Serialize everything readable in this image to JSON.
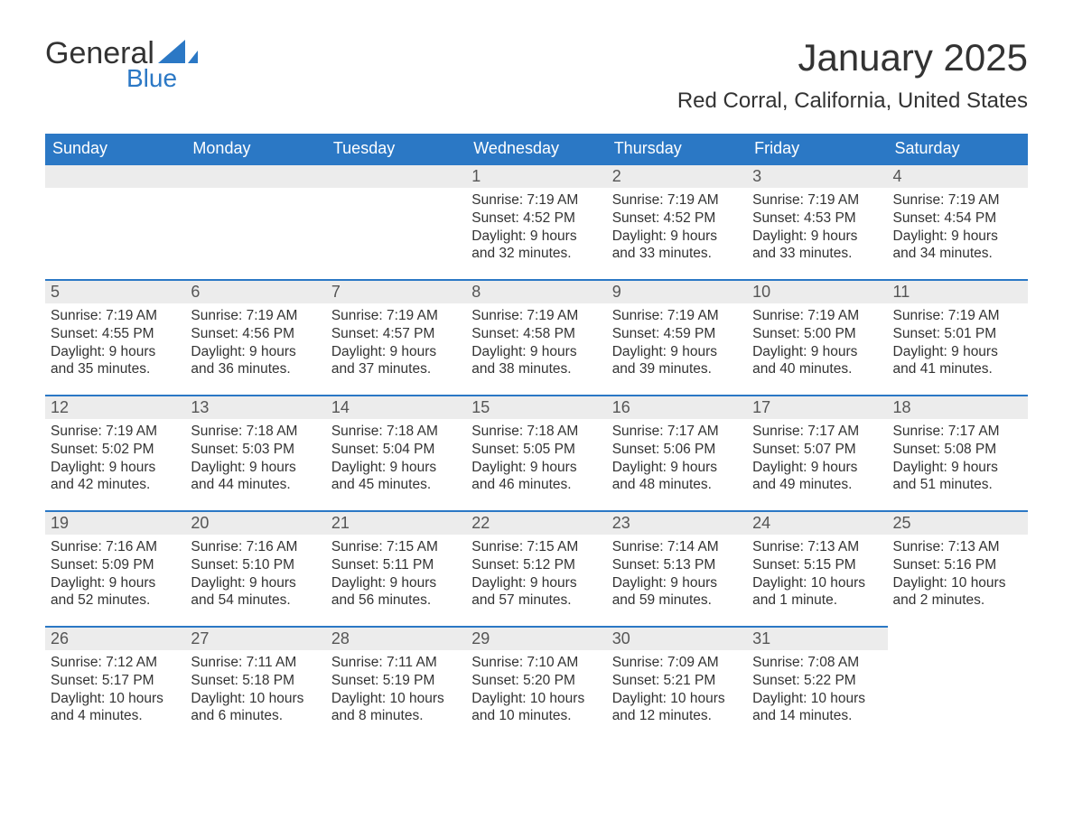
{
  "brand": {
    "part1": "General",
    "part2": "Blue",
    "color_text": "#333333",
    "color_accent": "#2b78c5"
  },
  "title": "January 2025",
  "location": "Red Corral, California, United States",
  "colors": {
    "header_bg": "#2b78c5",
    "header_text": "#ffffff",
    "daynum_bg": "#ececec",
    "row_border": "#2b78c5",
    "body_text": "#333333",
    "page_bg": "#ffffff"
  },
  "day_headers": [
    "Sunday",
    "Monday",
    "Tuesday",
    "Wednesday",
    "Thursday",
    "Friday",
    "Saturday"
  ],
  "weeks": [
    [
      null,
      null,
      null,
      {
        "n": "1",
        "sunrise": "Sunrise: 7:19 AM",
        "sunset": "Sunset: 4:52 PM",
        "daylight": "Daylight: 9 hours and 32 minutes."
      },
      {
        "n": "2",
        "sunrise": "Sunrise: 7:19 AM",
        "sunset": "Sunset: 4:52 PM",
        "daylight": "Daylight: 9 hours and 33 minutes."
      },
      {
        "n": "3",
        "sunrise": "Sunrise: 7:19 AM",
        "sunset": "Sunset: 4:53 PM",
        "daylight": "Daylight: 9 hours and 33 minutes."
      },
      {
        "n": "4",
        "sunrise": "Sunrise: 7:19 AM",
        "sunset": "Sunset: 4:54 PM",
        "daylight": "Daylight: 9 hours and 34 minutes."
      }
    ],
    [
      {
        "n": "5",
        "sunrise": "Sunrise: 7:19 AM",
        "sunset": "Sunset: 4:55 PM",
        "daylight": "Daylight: 9 hours and 35 minutes."
      },
      {
        "n": "6",
        "sunrise": "Sunrise: 7:19 AM",
        "sunset": "Sunset: 4:56 PM",
        "daylight": "Daylight: 9 hours and 36 minutes."
      },
      {
        "n": "7",
        "sunrise": "Sunrise: 7:19 AM",
        "sunset": "Sunset: 4:57 PM",
        "daylight": "Daylight: 9 hours and 37 minutes."
      },
      {
        "n": "8",
        "sunrise": "Sunrise: 7:19 AM",
        "sunset": "Sunset: 4:58 PM",
        "daylight": "Daylight: 9 hours and 38 minutes."
      },
      {
        "n": "9",
        "sunrise": "Sunrise: 7:19 AM",
        "sunset": "Sunset: 4:59 PM",
        "daylight": "Daylight: 9 hours and 39 minutes."
      },
      {
        "n": "10",
        "sunrise": "Sunrise: 7:19 AM",
        "sunset": "Sunset: 5:00 PM",
        "daylight": "Daylight: 9 hours and 40 minutes."
      },
      {
        "n": "11",
        "sunrise": "Sunrise: 7:19 AM",
        "sunset": "Sunset: 5:01 PM",
        "daylight": "Daylight: 9 hours and 41 minutes."
      }
    ],
    [
      {
        "n": "12",
        "sunrise": "Sunrise: 7:19 AM",
        "sunset": "Sunset: 5:02 PM",
        "daylight": "Daylight: 9 hours and 42 minutes."
      },
      {
        "n": "13",
        "sunrise": "Sunrise: 7:18 AM",
        "sunset": "Sunset: 5:03 PM",
        "daylight": "Daylight: 9 hours and 44 minutes."
      },
      {
        "n": "14",
        "sunrise": "Sunrise: 7:18 AM",
        "sunset": "Sunset: 5:04 PM",
        "daylight": "Daylight: 9 hours and 45 minutes."
      },
      {
        "n": "15",
        "sunrise": "Sunrise: 7:18 AM",
        "sunset": "Sunset: 5:05 PM",
        "daylight": "Daylight: 9 hours and 46 minutes."
      },
      {
        "n": "16",
        "sunrise": "Sunrise: 7:17 AM",
        "sunset": "Sunset: 5:06 PM",
        "daylight": "Daylight: 9 hours and 48 minutes."
      },
      {
        "n": "17",
        "sunrise": "Sunrise: 7:17 AM",
        "sunset": "Sunset: 5:07 PM",
        "daylight": "Daylight: 9 hours and 49 minutes."
      },
      {
        "n": "18",
        "sunrise": "Sunrise: 7:17 AM",
        "sunset": "Sunset: 5:08 PM",
        "daylight": "Daylight: 9 hours and 51 minutes."
      }
    ],
    [
      {
        "n": "19",
        "sunrise": "Sunrise: 7:16 AM",
        "sunset": "Sunset: 5:09 PM",
        "daylight": "Daylight: 9 hours and 52 minutes."
      },
      {
        "n": "20",
        "sunrise": "Sunrise: 7:16 AM",
        "sunset": "Sunset: 5:10 PM",
        "daylight": "Daylight: 9 hours and 54 minutes."
      },
      {
        "n": "21",
        "sunrise": "Sunrise: 7:15 AM",
        "sunset": "Sunset: 5:11 PM",
        "daylight": "Daylight: 9 hours and 56 minutes."
      },
      {
        "n": "22",
        "sunrise": "Sunrise: 7:15 AM",
        "sunset": "Sunset: 5:12 PM",
        "daylight": "Daylight: 9 hours and 57 minutes."
      },
      {
        "n": "23",
        "sunrise": "Sunrise: 7:14 AM",
        "sunset": "Sunset: 5:13 PM",
        "daylight": "Daylight: 9 hours and 59 minutes."
      },
      {
        "n": "24",
        "sunrise": "Sunrise: 7:13 AM",
        "sunset": "Sunset: 5:15 PM",
        "daylight": "Daylight: 10 hours and 1 minute."
      },
      {
        "n": "25",
        "sunrise": "Sunrise: 7:13 AM",
        "sunset": "Sunset: 5:16 PM",
        "daylight": "Daylight: 10 hours and 2 minutes."
      }
    ],
    [
      {
        "n": "26",
        "sunrise": "Sunrise: 7:12 AM",
        "sunset": "Sunset: 5:17 PM",
        "daylight": "Daylight: 10 hours and 4 minutes."
      },
      {
        "n": "27",
        "sunrise": "Sunrise: 7:11 AM",
        "sunset": "Sunset: 5:18 PM",
        "daylight": "Daylight: 10 hours and 6 minutes."
      },
      {
        "n": "28",
        "sunrise": "Sunrise: 7:11 AM",
        "sunset": "Sunset: 5:19 PM",
        "daylight": "Daylight: 10 hours and 8 minutes."
      },
      {
        "n": "29",
        "sunrise": "Sunrise: 7:10 AM",
        "sunset": "Sunset: 5:20 PM",
        "daylight": "Daylight: 10 hours and 10 minutes."
      },
      {
        "n": "30",
        "sunrise": "Sunrise: 7:09 AM",
        "sunset": "Sunset: 5:21 PM",
        "daylight": "Daylight: 10 hours and 12 minutes."
      },
      {
        "n": "31",
        "sunrise": "Sunrise: 7:08 AM",
        "sunset": "Sunset: 5:22 PM",
        "daylight": "Daylight: 10 hours and 14 minutes."
      },
      null
    ]
  ]
}
